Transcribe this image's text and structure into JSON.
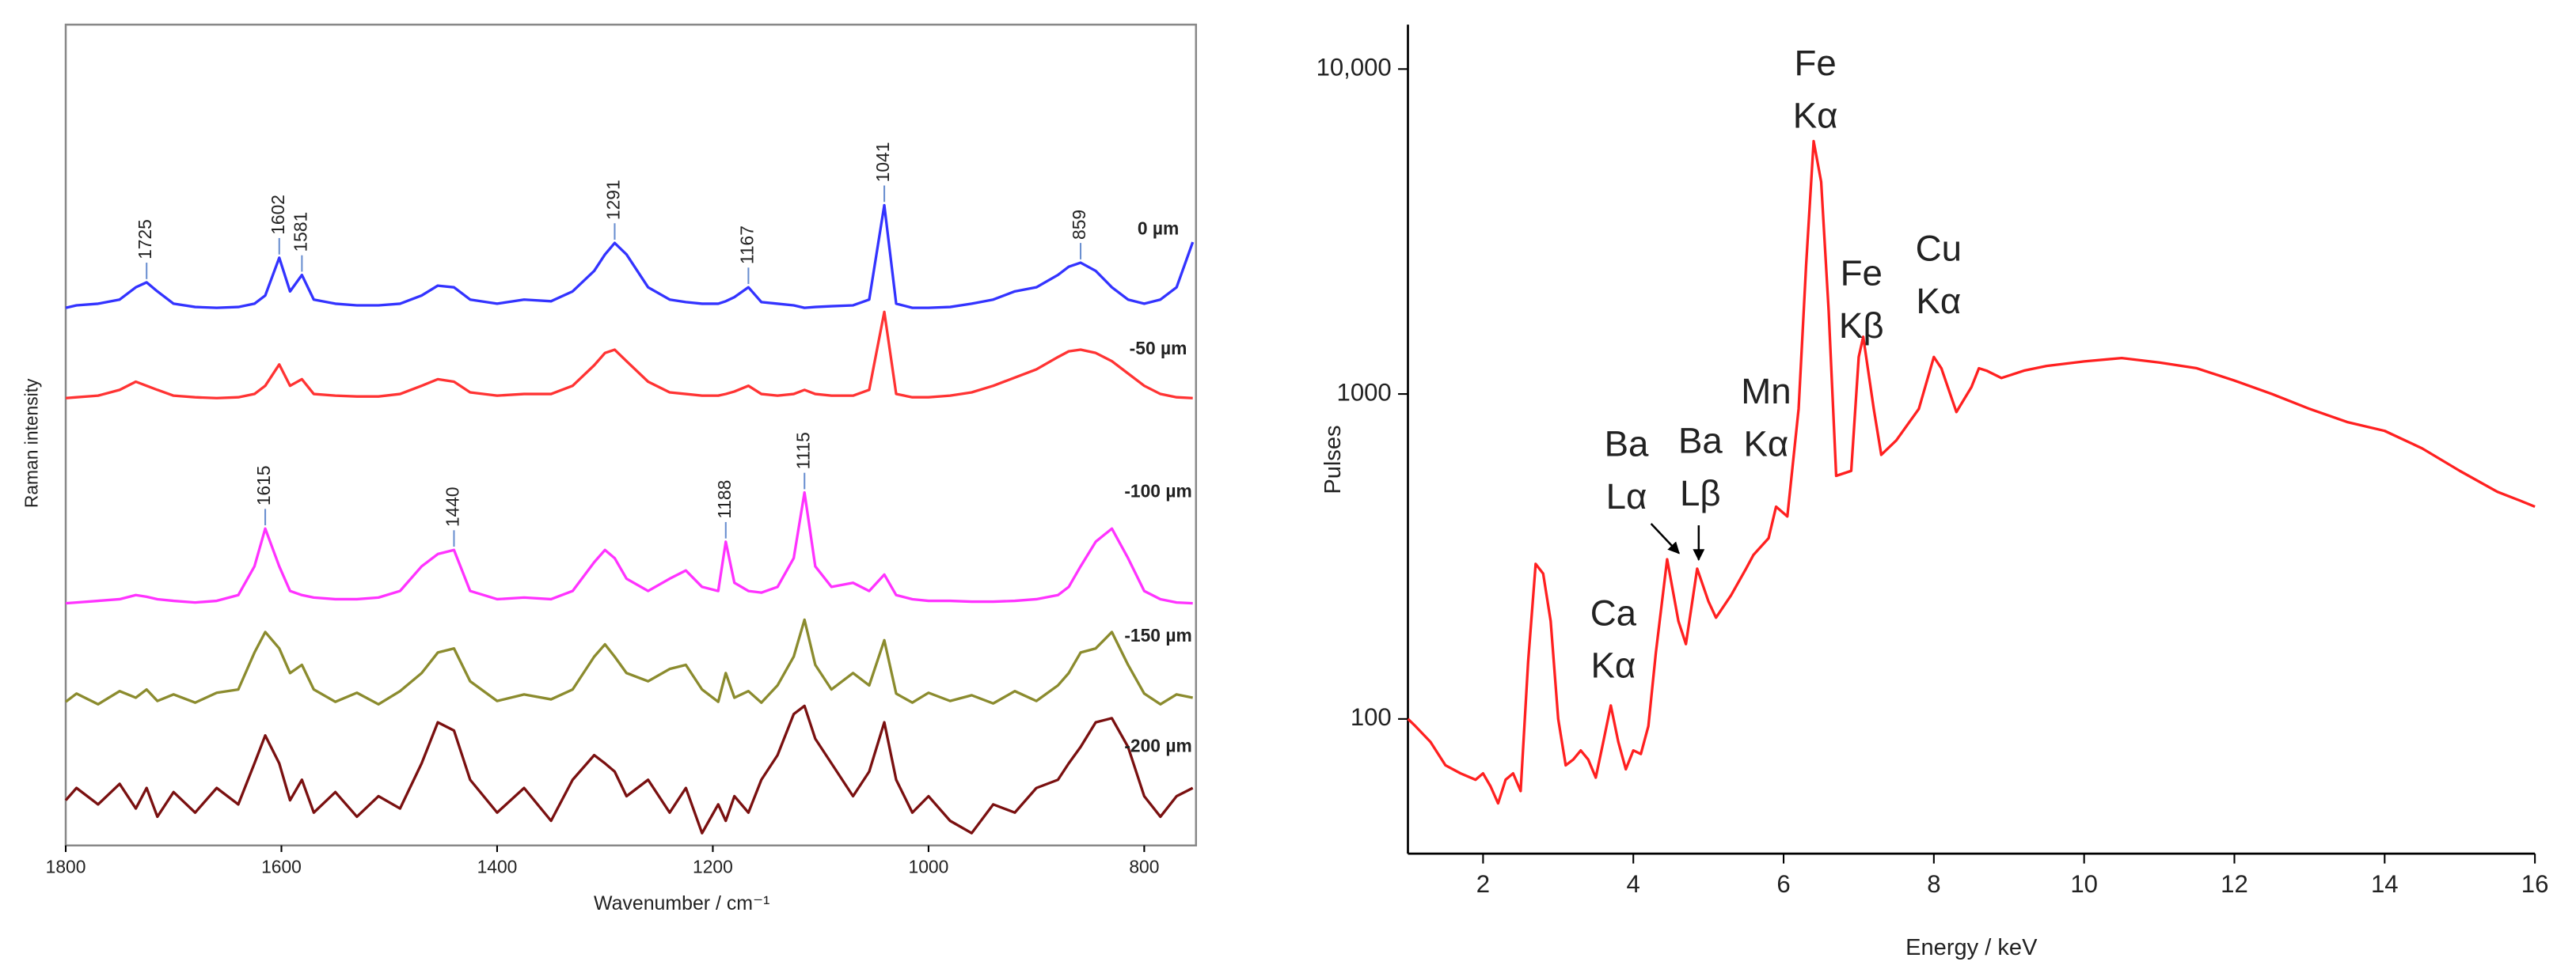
{
  "chart_data": [
    {
      "type": "line",
      "xlabel": "Wavenumber / cm⁻¹",
      "ylabel": "Raman intensity",
      "xlim": [
        1800,
        752
      ],
      "xticks": [
        1800,
        1600,
        1400,
        1200,
        1000,
        800
      ],
      "ylim": [
        0,
        100
      ],
      "x": [
        1800,
        1790,
        1770,
        1750,
        1735,
        1725,
        1715,
        1700,
        1680,
        1660,
        1640,
        1625,
        1615,
        1602,
        1592,
        1581,
        1570,
        1550,
        1530,
        1510,
        1490,
        1470,
        1455,
        1440,
        1425,
        1400,
        1375,
        1350,
        1330,
        1310,
        1300,
        1291,
        1280,
        1260,
        1240,
        1225,
        1210,
        1195,
        1188,
        1180,
        1167,
        1155,
        1140,
        1125,
        1115,
        1105,
        1090,
        1070,
        1055,
        1041,
        1030,
        1015,
        1000,
        980,
        960,
        940,
        920,
        900,
        880,
        870,
        859,
        845,
        830,
        815,
        800,
        785,
        770,
        755
      ],
      "series": [
        {
          "name": "0 µm",
          "color": "#3333ff",
          "values": [
            65.5,
            65.8,
            66,
            66.5,
            68,
            68.6,
            67.5,
            66,
            65.6,
            65.5,
            65.6,
            66,
            67,
            71.6,
            67.5,
            69.5,
            66.5,
            66,
            65.8,
            65.8,
            66,
            67,
            68.2,
            68,
            66.5,
            66,
            66.5,
            66.3,
            67.5,
            70,
            72,
            73.4,
            72,
            68,
            66.5,
            66.2,
            66,
            66,
            66.3,
            66.8,
            68,
            66.2,
            66,
            65.8,
            65.5,
            65.6,
            65.7,
            65.8,
            66.5,
            78,
            66,
            65.5,
            65.5,
            65.6,
            66,
            66.5,
            67.5,
            68,
            69.5,
            70.5,
            71,
            70,
            68,
            66.5,
            66,
            66.5,
            68,
            73.5
          ]
        },
        {
          "name": "-50 µm",
          "color": "#ff3333",
          "values": [
            54.5,
            54.6,
            54.8,
            55.5,
            56.5,
            56,
            55.5,
            54.8,
            54.6,
            54.5,
            54.6,
            55,
            56,
            58.6,
            56,
            56.8,
            55,
            54.8,
            54.7,
            54.7,
            55,
            56,
            56.8,
            56.5,
            55.2,
            54.8,
            55,
            55,
            56,
            58.5,
            60,
            60.4,
            59,
            56.5,
            55.2,
            55,
            54.8,
            54.8,
            55,
            55.3,
            56,
            55,
            54.8,
            55,
            55.5,
            55,
            54.8,
            54.8,
            55.5,
            65,
            55,
            54.6,
            54.6,
            54.8,
            55.2,
            56,
            57,
            58,
            59.5,
            60.2,
            60.4,
            60,
            59,
            57.5,
            56,
            55,
            54.6,
            54.5
          ]
        },
        {
          "name": "-100 µm",
          "color": "#ff33ff",
          "values": [
            29.5,
            29.6,
            29.8,
            30,
            30.5,
            30.3,
            30,
            29.8,
            29.6,
            29.8,
            30.5,
            34,
            38.6,
            34,
            31,
            30.5,
            30.2,
            30,
            30,
            30.2,
            31,
            34,
            35.5,
            36,
            31,
            30,
            30.2,
            30,
            31,
            34.5,
            36,
            35,
            32.5,
            31,
            32.5,
            33.5,
            31.5,
            31,
            37,
            32,
            31,
            30.8,
            31.5,
            35,
            43,
            34,
            31.5,
            32,
            31,
            33,
            30.5,
            30,
            29.8,
            29.8,
            29.7,
            29.7,
            29.8,
            30,
            30.5,
            31.5,
            34,
            37,
            38.6,
            35,
            31,
            30,
            29.6,
            29.5
          ]
        },
        {
          "name": "-150 µm",
          "color": "#8b8b2e",
          "values": [
            17.5,
            18.5,
            17.2,
            18.8,
            18,
            19,
            17.6,
            18.4,
            17.4,
            18.6,
            19,
            23.5,
            26,
            24,
            21,
            22,
            19,
            17.5,
            18.6,
            17.2,
            18.8,
            21,
            23.5,
            24,
            20,
            17.6,
            18.4,
            17.8,
            19,
            23,
            24.5,
            23,
            21,
            20,
            21.5,
            22,
            19,
            17.5,
            21,
            18,
            18.8,
            17.4,
            19.5,
            23,
            27.5,
            22,
            19,
            21,
            19.5,
            25,
            18.5,
            17.4,
            18.6,
            17.6,
            18.3,
            17.3,
            18.8,
            17.6,
            19.5,
            21,
            23.5,
            24,
            26,
            22,
            18.5,
            17.2,
            18.4,
            18
          ]
        },
        {
          "name": "-200 µm",
          "color": "#7a1010",
          "values": [
            5.5,
            7,
            5,
            7.5,
            4.5,
            7,
            3.5,
            6.5,
            4,
            7,
            5,
            10,
            13.4,
            10,
            5.5,
            8,
            4,
            6.5,
            3.5,
            6,
            4.5,
            10,
            15,
            14,
            8,
            4,
            7,
            3,
            8,
            11,
            10,
            9,
            6,
            8,
            4,
            7,
            1.5,
            5,
            3,
            6,
            4,
            8,
            11,
            16,
            17,
            13,
            10,
            6,
            9,
            15,
            8,
            4,
            6,
            3,
            1.5,
            5,
            4,
            7,
            8,
            10,
            12,
            15,
            15.5,
            12,
            6,
            3.5,
            6,
            7
          ]
        }
      ],
      "peaks": [
        {
          "x": 1725,
          "series": 0
        },
        {
          "x": 1602,
          "series": 0
        },
        {
          "x": 1581,
          "series": 0
        },
        {
          "x": 1291,
          "series": 0
        },
        {
          "x": 1167,
          "series": 0
        },
        {
          "x": 1041,
          "series": 0
        },
        {
          "x": 859,
          "series": 0
        },
        {
          "x": 1615,
          "series": 2
        },
        {
          "x": 1440,
          "series": 2
        },
        {
          "x": 1188,
          "series": 2
        },
        {
          "x": 1115,
          "series": 2
        }
      ]
    },
    {
      "type": "line",
      "xlabel": "Energy / keV",
      "ylabel": "Pulses",
      "xlim": [
        1,
        16
      ],
      "xticks": [
        2,
        4,
        6,
        8,
        10,
        12,
        14,
        16
      ],
      "ylim": [
        38.5,
        13700
      ],
      "yscale": "log",
      "yticks": [
        100,
        1000,
        {
          "value": 10000,
          "label": "10,000"
        }
      ],
      "color": "#ff2020",
      "x": [
        1.0,
        1.1,
        1.3,
        1.5,
        1.7,
        1.9,
        2.0,
        2.1,
        2.2,
        2.3,
        2.4,
        2.5,
        2.6,
        2.7,
        2.8,
        2.9,
        3.0,
        3.1,
        3.2,
        3.3,
        3.4,
        3.5,
        3.6,
        3.7,
        3.8,
        3.9,
        4.0,
        4.1,
        4.2,
        4.3,
        4.45,
        4.6,
        4.7,
        4.85,
        5.0,
        5.1,
        5.3,
        5.5,
        5.6,
        5.8,
        5.9,
        6.05,
        6.2,
        6.3,
        6.4,
        6.5,
        6.6,
        6.7,
        6.9,
        7.0,
        7.06,
        7.2,
        7.3,
        7.5,
        7.8,
        8.0,
        8.1,
        8.3,
        8.5,
        8.6,
        8.7,
        8.9,
        9.2,
        9.5,
        10,
        10.5,
        11,
        11.5,
        12,
        12.5,
        13,
        13.5,
        14,
        14.5,
        15,
        15.5,
        15.8,
        16
      ],
      "values": [
        100,
        95,
        85,
        72,
        68,
        65,
        68,
        62,
        55,
        65,
        68,
        60,
        150,
        300,
        280,
        200,
        100,
        72,
        75,
        80,
        75,
        66,
        85,
        110,
        85,
        70,
        80,
        78,
        95,
        160,
        310,
        200,
        170,
        290,
        230,
        205,
        240,
        290,
        320,
        360,
        450,
        420,
        900,
        2500,
        6000,
        4500,
        1800,
        560,
        580,
        1300,
        1500,
        900,
        650,
        720,
        900,
        1300,
        1200,
        880,
        1050,
        1200,
        1180,
        1120,
        1180,
        1220,
        1260,
        1290,
        1250,
        1200,
        1100,
        1000,
        900,
        820,
        770,
        680,
        580,
        500,
        470,
        450
      ],
      "annotations": [
        {
          "lines": [
            "Fe",
            "Kα"
          ]
        },
        {
          "lines": [
            "Fe",
            "Kβ"
          ]
        },
        {
          "lines": [
            "Cu",
            "Kα"
          ]
        },
        {
          "lines": [
            "Mn",
            "Kα"
          ]
        },
        {
          "lines": [
            "Ba",
            "Lβ"
          ]
        },
        {
          "lines": [
            "Ba",
            "Lα"
          ]
        },
        {
          "lines": [
            "Ca",
            "Kα"
          ]
        }
      ]
    }
  ]
}
